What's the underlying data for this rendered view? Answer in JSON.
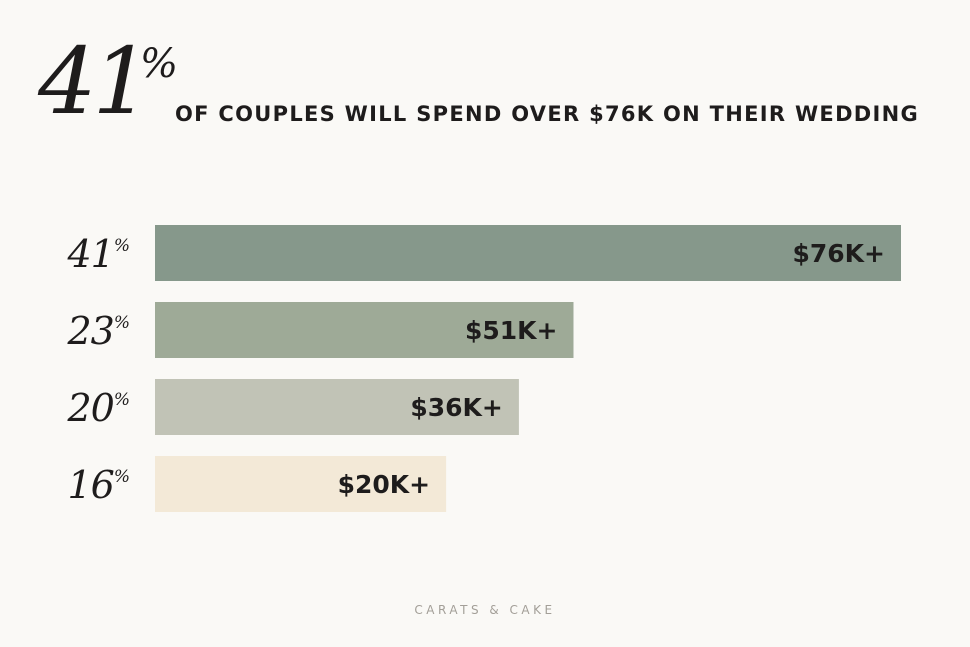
{
  "headline": {
    "number": "41",
    "percent": "%",
    "text": "OF COUPLES WILL SPEND OVER $76K ON THEIR WEDDING"
  },
  "brand": "CARATS & CAKE",
  "chart_data": {
    "type": "bar",
    "orientation": "horizontal",
    "categories": [
      "$76K+",
      "$51K+",
      "$36K+",
      "$20K+"
    ],
    "values": [
      41,
      23,
      20,
      16
    ],
    "value_suffix": "%",
    "colors": [
      "#86988b",
      "#9eaa97",
      "#c1c3b6",
      "#f3e9d7"
    ],
    "title": "",
    "xlabel": "",
    "ylabel": "",
    "grid": false
  }
}
